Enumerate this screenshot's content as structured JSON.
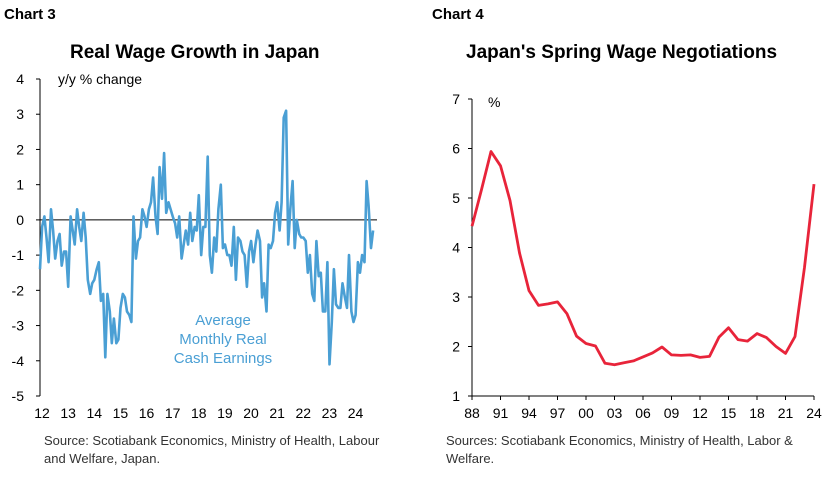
{
  "charts": [
    {
      "label": "Chart 3",
      "title": "Real Wage Growth in Japan",
      "unit_label": "y/y % change",
      "source": "Source: Scotiabank Economics, Ministry of Health, Labour and Welfare, Japan.",
      "series_label": [
        "Average",
        "Monthly Real",
        "Cash Earnings"
      ],
      "line_color": "#4a9fd4"
    },
    {
      "label": "Chart 4",
      "title": "Japan's Spring Wage Negotiations",
      "unit_label": "%",
      "source": "Sources: Scotiabank Economics, Ministry of Health, Labor & Welfare.",
      "line_color": "#e8243a"
    }
  ],
  "chart_data": [
    {
      "type": "line",
      "title": "Real Wage Growth in Japan",
      "ylabel": "y/y % change",
      "ylim": [
        -5,
        4
      ],
      "yticks": [
        4,
        3,
        2,
        1,
        0,
        -1,
        -2,
        -3,
        -4,
        -5
      ],
      "xlim": [
        2012,
        2024.9
      ],
      "xticks": [
        "12",
        "13",
        "14",
        "15",
        "16",
        "17",
        "18",
        "19",
        "20",
        "21",
        "22",
        "23",
        "24"
      ],
      "grid": false,
      "series": [
        {
          "name": "Average Monthly Real Cash Earnings",
          "color": "#4a9fd4",
          "x": [
            2012.0,
            2012.08,
            2012.17,
            2012.25,
            2012.33,
            2012.42,
            2012.5,
            2012.58,
            2012.67,
            2012.75,
            2012.83,
            2012.92,
            2013.0,
            2013.08,
            2013.17,
            2013.25,
            2013.33,
            2013.42,
            2013.5,
            2013.58,
            2013.67,
            2013.75,
            2013.83,
            2013.92,
            2014.0,
            2014.08,
            2014.17,
            2014.25,
            2014.33,
            2014.42,
            2014.5,
            2014.58,
            2014.67,
            2014.75,
            2014.83,
            2014.92,
            2015.0,
            2015.08,
            2015.17,
            2015.25,
            2015.33,
            2015.42,
            2015.5,
            2015.58,
            2015.67,
            2015.75,
            2015.83,
            2015.92,
            2016.0,
            2016.08,
            2016.17,
            2016.25,
            2016.33,
            2016.42,
            2016.5,
            2016.58,
            2016.67,
            2016.75,
            2016.83,
            2016.92,
            2017.0,
            2017.08,
            2017.17,
            2017.25,
            2017.33,
            2017.42,
            2017.5,
            2017.58,
            2017.67,
            2017.75,
            2017.83,
            2017.92,
            2018.0,
            2018.08,
            2018.17,
            2018.25,
            2018.33,
            2018.42,
            2018.5,
            2018.58,
            2018.67,
            2018.75,
            2018.83,
            2018.92,
            2019.0,
            2019.08,
            2019.17,
            2019.25,
            2019.33,
            2019.42,
            2019.5,
            2019.58,
            2019.67,
            2019.75,
            2019.83,
            2019.92,
            2020.0,
            2020.08,
            2020.17,
            2020.25,
            2020.33,
            2020.42,
            2020.5,
            2020.58,
            2020.67,
            2020.75,
            2020.83,
            2020.92,
            2021.0,
            2021.08,
            2021.17,
            2021.25,
            2021.33,
            2021.42,
            2021.5,
            2021.58,
            2021.67,
            2021.75,
            2021.83,
            2021.92,
            2022.0,
            2022.08,
            2022.17,
            2022.25,
            2022.33,
            2022.42,
            2022.5,
            2022.58,
            2022.67,
            2022.75,
            2022.83,
            2022.92,
            2023.0,
            2023.08,
            2023.17,
            2023.25,
            2023.33,
            2023.42,
            2023.5,
            2023.58,
            2023.67,
            2023.75,
            2023.83,
            2023.92,
            2024.0,
            2024.08,
            2024.17,
            2024.25,
            2024.33,
            2024.42,
            2024.5,
            2024.58,
            2024.67,
            2024.75
          ],
          "y": [
            -1.4,
            -0.2,
            0.1,
            -0.5,
            -1.2,
            0.3,
            -0.3,
            -1.1,
            -0.6,
            -0.4,
            -1.3,
            -0.9,
            -0.9,
            -1.9,
            0.1,
            -0.3,
            -0.7,
            0.3,
            -0.2,
            -0.6,
            0.2,
            -0.5,
            -1.7,
            -2.1,
            -1.8,
            -1.7,
            -1.4,
            -1.2,
            -2.3,
            -2.1,
            -3.9,
            -2.1,
            -2.6,
            -3.5,
            -2.8,
            -3.5,
            -3.4,
            -2.5,
            -2.1,
            -2.2,
            -2.6,
            -2.7,
            -2.9,
            0.1,
            -1.1,
            -0.6,
            -0.5,
            0.3,
            0.1,
            -0.2,
            0.3,
            0.5,
            1.2,
            0.1,
            -0.4,
            1.5,
            0.6,
            1.9,
            0.2,
            0.5,
            0.3,
            0.1,
            -0.1,
            -0.5,
            0.1,
            -1.1,
            -0.7,
            -0.3,
            -0.7,
            0.2,
            -0.6,
            -0.2,
            -0.3,
            0.7,
            -1.0,
            -0.2,
            -0.2,
            1.8,
            -1.0,
            -1.5,
            -0.5,
            -0.9,
            0.3,
            1.0,
            -0.8,
            -0.7,
            -1.0,
            -1.0,
            -1.3,
            -0.2,
            -1.7,
            -0.5,
            -0.6,
            -0.9,
            -1.0,
            -1.9,
            -0.9,
            -0.6,
            -1.2,
            -0.7,
            -0.3,
            -0.6,
            -2.2,
            -1.8,
            -2.6,
            -0.7,
            -0.8,
            -0.6,
            0.2,
            0.5,
            -0.3,
            0.5,
            2.9,
            3.1,
            -0.7,
            0.3,
            1.1,
            -0.8,
            0.0,
            -0.4,
            -0.5,
            -0.5,
            -0.6,
            -1.5,
            -1.0,
            -2.1,
            -2.3,
            -0.6,
            -1.6,
            -1.5,
            -2.6,
            -2.6,
            -1.2,
            -4.1,
            -2.9,
            -1.4,
            -2.4,
            -2.5,
            -2.5,
            -1.8,
            -2.2,
            -2.5,
            -1.0,
            -2.6,
            -2.9,
            -2.7,
            -1.2,
            -1.5,
            -1.0,
            -1.2,
            1.1,
            0.4,
            -0.8,
            -0.3
          ]
        }
      ]
    },
    {
      "type": "line",
      "title": "Japan's Spring Wage Negotiations",
      "ylabel": "%",
      "ylim": [
        1,
        7
      ],
      "yticks": [
        7,
        6,
        5,
        4,
        3,
        2,
        1
      ],
      "xlim": [
        1988,
        2024
      ],
      "xticks": [
        "88",
        "91",
        "94",
        "97",
        "00",
        "03",
        "06",
        "09",
        "12",
        "15",
        "18",
        "21",
        "24"
      ],
      "grid": false,
      "series": [
        {
          "name": "Spring wage negotiations",
          "color": "#e8243a",
          "x": [
            1988,
            1989,
            1990,
            1991,
            1992,
            1993,
            1994,
            1995,
            1996,
            1997,
            1998,
            1999,
            2000,
            2001,
            2002,
            2003,
            2004,
            2005,
            2006,
            2007,
            2008,
            2009,
            2010,
            2011,
            2012,
            2013,
            2014,
            2015,
            2016,
            2017,
            2018,
            2019,
            2020,
            2021,
            2022,
            2023,
            2024
          ],
          "y": [
            4.43,
            5.17,
            5.94,
            5.65,
            4.95,
            3.89,
            3.13,
            2.83,
            2.86,
            2.9,
            2.66,
            2.21,
            2.06,
            2.01,
            1.66,
            1.63,
            1.67,
            1.71,
            1.79,
            1.87,
            1.99,
            1.83,
            1.82,
            1.83,
            1.78,
            1.8,
            2.19,
            2.38,
            2.14,
            2.11,
            2.26,
            2.18,
            2.0,
            1.86,
            2.2,
            3.6,
            5.28
          ]
        }
      ]
    }
  ]
}
